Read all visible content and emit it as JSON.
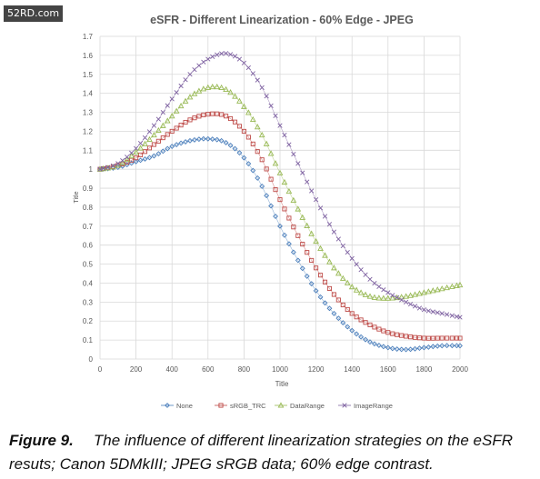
{
  "watermark": "52RD.com",
  "caption": {
    "label": "Figure 9.",
    "text": "The influence of different linearization strategies on the eSFR resuts; Canon 5DMkIII; JPEG sRGB data; 60% edge contrast."
  },
  "chart_data": {
    "type": "line",
    "title": "eSFR - Different Linearization - 60% Edge - JPEG",
    "xlabel": "Title",
    "ylabel": "Title",
    "xlim": [
      0,
      2000
    ],
    "ylim": [
      0,
      1.7
    ],
    "xticks": [
      0,
      200,
      400,
      600,
      800,
      1000,
      1200,
      1400,
      1600,
      1800,
      2000
    ],
    "yticks": [
      0,
      0.1,
      0.2,
      0.3,
      0.4,
      0.5,
      0.6,
      0.7,
      0.8,
      0.9,
      1,
      1.1,
      1.2,
      1.3,
      1.4,
      1.5,
      1.6,
      1.7
    ],
    "grid": true,
    "legend_position": "bottom",
    "series": [
      {
        "name": "None",
        "color": "#4a7ebb",
        "marker": "diamond",
        "x": [
          0,
          100,
          200,
          300,
          400,
          500,
          600,
          700,
          800,
          900,
          1000,
          1100,
          1200,
          1300,
          1400,
          1500,
          1600,
          1700,
          1800,
          1900,
          2000
        ],
        "y": [
          1.0,
          1.01,
          1.04,
          1.07,
          1.12,
          1.15,
          1.16,
          1.14,
          1.06,
          0.91,
          0.7,
          0.52,
          0.36,
          0.24,
          0.15,
          0.09,
          0.06,
          0.05,
          0.06,
          0.07,
          0.07
        ]
      },
      {
        "name": "sRGB_TRC",
        "color": "#be4b48",
        "marker": "square",
        "x": [
          0,
          100,
          200,
          300,
          400,
          500,
          600,
          700,
          800,
          900,
          1000,
          1100,
          1200,
          1300,
          1400,
          1500,
          1600,
          1700,
          1800,
          1900,
          2000
        ],
        "y": [
          1.0,
          1.02,
          1.06,
          1.13,
          1.2,
          1.26,
          1.29,
          1.28,
          1.2,
          1.05,
          0.84,
          0.65,
          0.48,
          0.34,
          0.24,
          0.18,
          0.14,
          0.12,
          0.11,
          0.11,
          0.11
        ]
      },
      {
        "name": "DataRange",
        "color": "#98b954",
        "marker": "triangle",
        "x": [
          0,
          100,
          200,
          300,
          400,
          500,
          600,
          700,
          800,
          900,
          1000,
          1100,
          1200,
          1300,
          1400,
          1500,
          1600,
          1700,
          1800,
          1900,
          2000
        ],
        "y": [
          1.0,
          1.02,
          1.09,
          1.18,
          1.28,
          1.38,
          1.43,
          1.42,
          1.33,
          1.18,
          0.98,
          0.79,
          0.62,
          0.48,
          0.38,
          0.33,
          0.32,
          0.33,
          0.35,
          0.37,
          0.39
        ]
      },
      {
        "name": "ImageRange",
        "color": "#7d60a0",
        "marker": "x",
        "x": [
          0,
          100,
          200,
          300,
          400,
          500,
          600,
          700,
          800,
          900,
          1000,
          1100,
          1200,
          1300,
          1400,
          1500,
          1600,
          1700,
          1800,
          1900,
          2000
        ],
        "y": [
          1.0,
          1.03,
          1.11,
          1.23,
          1.37,
          1.5,
          1.58,
          1.61,
          1.56,
          1.43,
          1.23,
          1.03,
          0.84,
          0.67,
          0.53,
          0.42,
          0.35,
          0.3,
          0.26,
          0.24,
          0.22
        ]
      }
    ]
  }
}
